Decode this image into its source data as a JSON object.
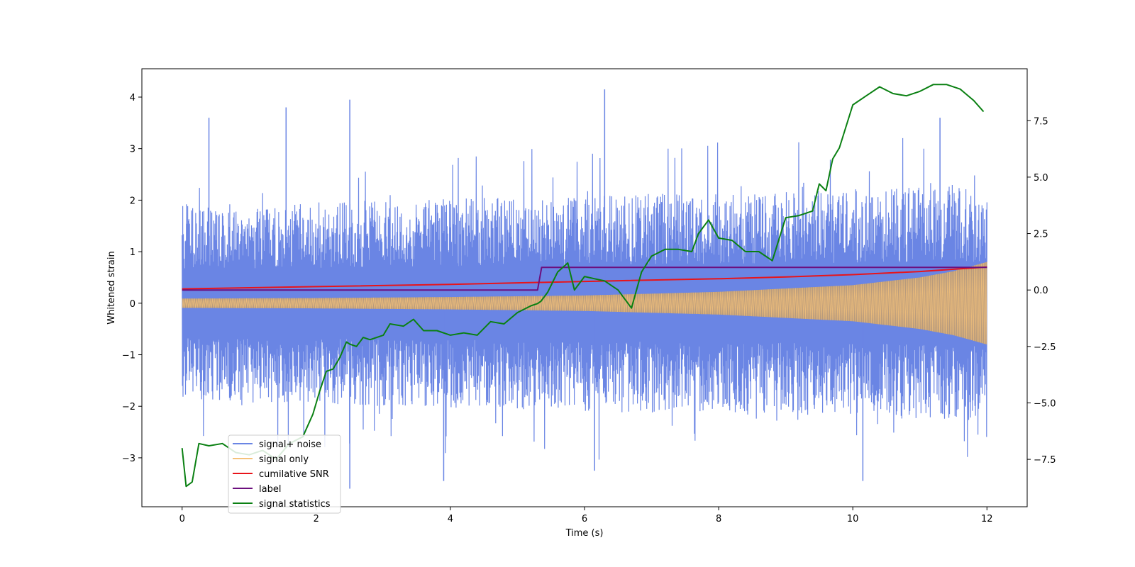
{
  "chart_data": {
    "type": "line",
    "title": "",
    "xlabel": "Time (s)",
    "ylabel_left": "Whitened strain",
    "ylabel_right": "",
    "xlim": [
      -0.6,
      12.6
    ],
    "ylim_left": [
      -3.95,
      4.55
    ],
    "ylim_right": [
      -9.6,
      9.8
    ],
    "xticks": [
      0,
      2,
      4,
      6,
      8,
      10,
      12
    ],
    "yticks_left": [
      -3,
      -2,
      -1,
      0,
      1,
      2,
      3,
      4
    ],
    "yticks_right": [
      -7.5,
      -5.0,
      -2.5,
      0.0,
      2.5,
      5.0,
      7.5
    ],
    "xtick_labels": [
      "0",
      "2",
      "4",
      "6",
      "8",
      "10",
      "12"
    ],
    "ytick_labels_left": [
      "−3",
      "−2",
      "−1",
      "0",
      "1",
      "2",
      "3",
      "4"
    ],
    "ytick_labels_right": [
      "−7.5",
      "−5.0",
      "−2.5",
      "0.0",
      "2.5",
      "5.0",
      "7.5"
    ],
    "grid": false,
    "legend_position": "lower-left",
    "series": [
      {
        "name": "signal+ noise",
        "axis": "left",
        "color": "#6a85e4",
        "style": "noise",
        "x_range": [
          0,
          12
        ],
        "band_min": [
          -2.0,
          -2.4
        ],
        "band_max": [
          2.0,
          2.4
        ],
        "peak_max": 4.15,
        "peak_min": -3.6
      },
      {
        "name": "signal only",
        "axis": "left",
        "color": "#f5c27a",
        "style": "envelope",
        "x": [
          0,
          2,
          4,
          6,
          8,
          10,
          11,
          11.5,
          12
        ],
        "amplitude": [
          0.09,
          0.1,
          0.12,
          0.15,
          0.22,
          0.35,
          0.5,
          0.62,
          0.8
        ]
      },
      {
        "name": "cumilative SNR",
        "axis": "right",
        "color": "#e8141a",
        "x": [
          0,
          2,
          4,
          6,
          8,
          9,
          10,
          11,
          11.5,
          12
        ],
        "y": [
          0.05,
          0.15,
          0.25,
          0.38,
          0.5,
          0.58,
          0.68,
          0.82,
          0.92,
          1.02
        ]
      },
      {
        "name": "label",
        "axis": "right",
        "color": "#6c0f7e",
        "x": [
          0,
          5.3,
          5.36,
          12
        ],
        "y": [
          0,
          0,
          1,
          1
        ]
      },
      {
        "name": "signal statistics",
        "axis": "right",
        "color": "#0a8012",
        "x": [
          0,
          0.06,
          0.15,
          0.25,
          0.4,
          0.6,
          0.8,
          1.0,
          1.2,
          1.4,
          1.6,
          1.8,
          1.95,
          2.05,
          2.15,
          2.25,
          2.35,
          2.45,
          2.5,
          2.6,
          2.7,
          2.8,
          3.0,
          3.1,
          3.3,
          3.45,
          3.6,
          3.8,
          4.0,
          4.2,
          4.4,
          4.6,
          4.8,
          5.0,
          5.2,
          5.3,
          5.35,
          5.45,
          5.6,
          5.75,
          5.85,
          6.0,
          6.15,
          6.3,
          6.5,
          6.7,
          6.85,
          7.0,
          7.2,
          7.4,
          7.6,
          7.7,
          7.85,
          8.0,
          8.2,
          8.4,
          8.6,
          8.8,
          9.0,
          9.2,
          9.4,
          9.5,
          9.6,
          9.7,
          9.8,
          10.0,
          10.2,
          10.4,
          10.6,
          10.8,
          11.0,
          11.2,
          11.4,
          11.6,
          11.8,
          11.95
        ],
        "y": [
          -7.0,
          -8.7,
          -8.5,
          -6.8,
          -6.9,
          -6.8,
          -7.2,
          -7.3,
          -7.1,
          -7.5,
          -6.8,
          -6.5,
          -5.5,
          -4.5,
          -3.6,
          -3.5,
          -3.0,
          -2.3,
          -2.4,
          -2.5,
          -2.1,
          -2.2,
          -2.0,
          -1.5,
          -1.6,
          -1.3,
          -1.8,
          -1.8,
          -2.0,
          -1.9,
          -2.0,
          -1.4,
          -1.5,
          -1.0,
          -0.7,
          -0.6,
          -0.5,
          -0.1,
          0.8,
          1.2,
          0.0,
          0.6,
          0.5,
          0.4,
          0.0,
          -0.8,
          0.8,
          1.5,
          1.8,
          1.8,
          1.7,
          2.5,
          3.1,
          2.3,
          2.2,
          1.7,
          1.7,
          1.3,
          3.2,
          3.3,
          3.5,
          4.7,
          4.4,
          5.8,
          6.3,
          8.2,
          8.6,
          9.0,
          8.7,
          8.6,
          8.8,
          9.1,
          9.1,
          8.9,
          8.4,
          7.9
        ]
      }
    ]
  }
}
